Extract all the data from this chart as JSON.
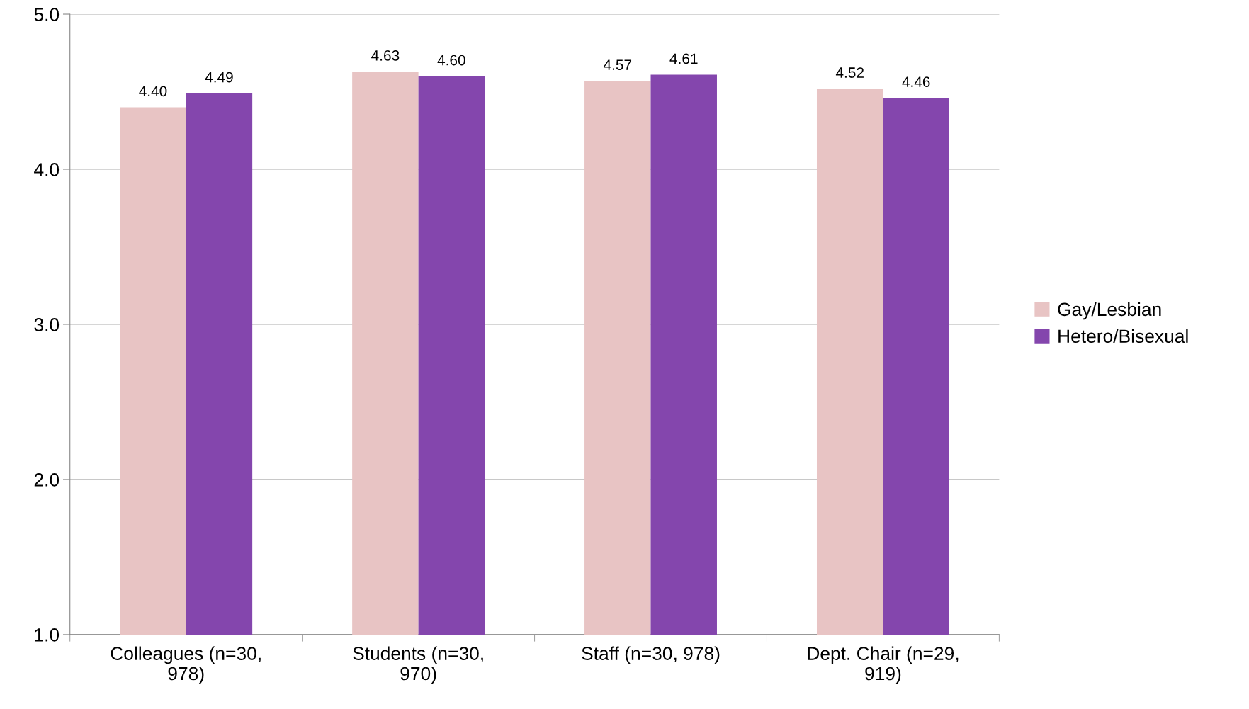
{
  "chart_data": {
    "type": "bar",
    "categories": [
      "Colleagues (n=30,\n978)",
      "Students (n=30,\n970)",
      "Staff (n=30, 978)",
      "Dept. Chair (n=29,\n919)"
    ],
    "series": [
      {
        "name": "Gay/Lesbian",
        "color": "#e8c4c4",
        "values": [
          4.4,
          4.63,
          4.57,
          4.52
        ],
        "value_labels": [
          "4.40",
          "4.63",
          "4.57",
          "4.52"
        ]
      },
      {
        "name": "Hetero/Bisexual",
        "color": "#8446ad",
        "values": [
          4.49,
          4.6,
          4.61,
          4.46
        ],
        "value_labels": [
          "4.49",
          "4.60",
          "4.61",
          "4.46"
        ]
      }
    ],
    "ylim": [
      1,
      5
    ],
    "yticks": [
      {
        "value": 1,
        "label": "1.0"
      },
      {
        "value": 2,
        "label": "2.0"
      },
      {
        "value": 3,
        "label": "3.0"
      },
      {
        "value": 4,
        "label": "4.0"
      },
      {
        "value": 5,
        "label": "5.0"
      }
    ],
    "grid": "y",
    "legend": "right"
  }
}
